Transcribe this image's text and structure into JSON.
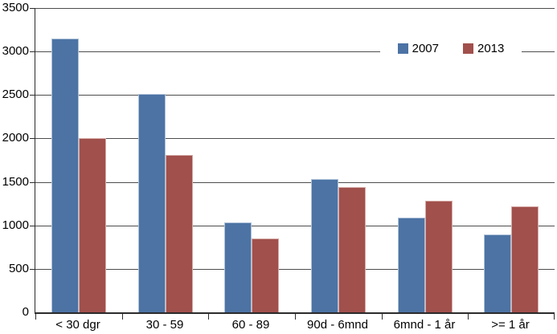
{
  "chart_data": {
    "type": "bar",
    "title": "",
    "xlabel": "",
    "ylabel": "",
    "categories": [
      "< 30 dgr",
      "30 - 59",
      "60 - 89",
      "90d - 6mnd",
      "6mnd - 1 år",
      ">= 1 år"
    ],
    "series": [
      {
        "name": "2007",
        "color": "#4C73A4",
        "edge_color": "#AFC2D8",
        "values": [
          3150,
          2510,
          1030,
          1530,
          1090,
          900
        ]
      },
      {
        "name": "2013",
        "color": "#A1504C",
        "edge_color": "#D6ACA8",
        "values": [
          2000,
          1810,
          850,
          1440,
          1280,
          1220
        ]
      }
    ],
    "ylim": [
      0,
      3500
    ],
    "y_ticks": [
      0,
      500,
      1000,
      1500,
      2000,
      2500,
      3000,
      3500
    ],
    "grid": true,
    "legend_position": "inside-top-right",
    "colors": {
      "background": "#FFFFFF",
      "gridline": "#4D4D4D",
      "axis": "#2B2B2B",
      "text": "#000000"
    }
  }
}
